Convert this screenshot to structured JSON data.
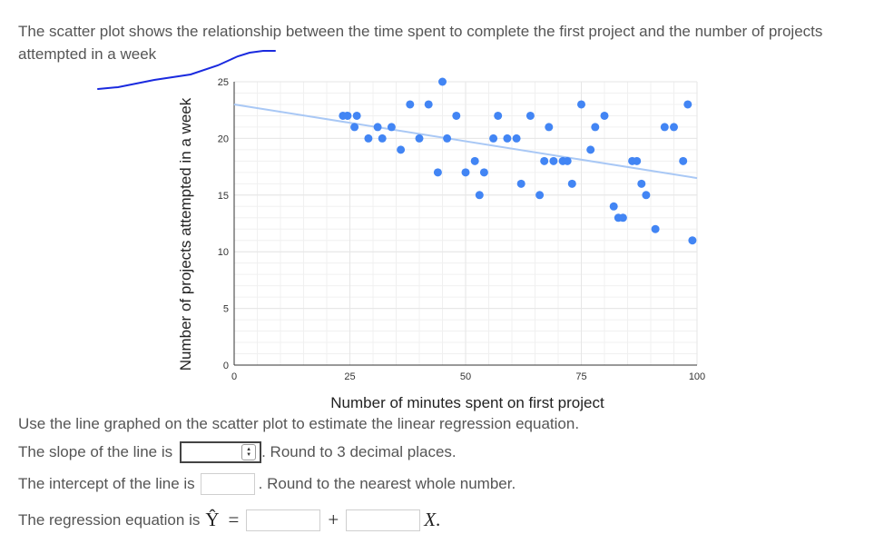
{
  "intro": "The scatter plot shows the relationship between the time spent to complete the first project and the number of projects attempted in a week",
  "question": "Use the line graphed on the scatter plot to estimate the linear regression equation.",
  "slope": {
    "label": "The slope of the line is",
    "note": ". Round to 3 decimal places.",
    "value": ""
  },
  "intercept": {
    "label": "The intercept of the line is",
    "note": ". Round to the nearest whole number.",
    "value": ""
  },
  "equation": {
    "label": "The regression equation is",
    "yhat": "Ŷ",
    "equals": "=",
    "plus": "+",
    "x": "X",
    "period": ".",
    "value_a": "",
    "value_b": ""
  },
  "colors": {
    "points": "#4285f4",
    "line": "#a9c8f5",
    "grid": "#e6e6e6",
    "ink": "#1a2adf"
  },
  "chart_data": {
    "type": "scatter",
    "title": "",
    "xlabel": "Number of minutes spent on first project",
    "ylabel": "Number of projects attempted in a week",
    "xlim": [
      0,
      100
    ],
    "ylim": [
      0,
      25
    ],
    "xticks": [
      0,
      25,
      50,
      75,
      100
    ],
    "yticks": [
      0,
      5,
      10,
      15,
      20,
      25
    ],
    "grid": true,
    "points": [
      {
        "x": 23.5,
        "y": 22
      },
      {
        "x": 24.5,
        "y": 22
      },
      {
        "x": 26.5,
        "y": 22
      },
      {
        "x": 26,
        "y": 21
      },
      {
        "x": 29,
        "y": 20
      },
      {
        "x": 31,
        "y": 21
      },
      {
        "x": 32,
        "y": 20
      },
      {
        "x": 34,
        "y": 21
      },
      {
        "x": 36,
        "y": 19
      },
      {
        "x": 38,
        "y": 23
      },
      {
        "x": 40,
        "y": 20
      },
      {
        "x": 42,
        "y": 23
      },
      {
        "x": 44,
        "y": 17
      },
      {
        "x": 45,
        "y": 25
      },
      {
        "x": 46,
        "y": 20
      },
      {
        "x": 48,
        "y": 22
      },
      {
        "x": 50,
        "y": 17
      },
      {
        "x": 52,
        "y": 18
      },
      {
        "x": 53,
        "y": 15
      },
      {
        "x": 54,
        "y": 17
      },
      {
        "x": 56,
        "y": 20
      },
      {
        "x": 57,
        "y": 22
      },
      {
        "x": 59,
        "y": 20
      },
      {
        "x": 61,
        "y": 20
      },
      {
        "x": 62,
        "y": 16
      },
      {
        "x": 64,
        "y": 22
      },
      {
        "x": 66,
        "y": 15
      },
      {
        "x": 68,
        "y": 21
      },
      {
        "x": 67,
        "y": 18
      },
      {
        "x": 69,
        "y": 18
      },
      {
        "x": 71,
        "y": 18
      },
      {
        "x": 72,
        "y": 18
      },
      {
        "x": 73,
        "y": 16
      },
      {
        "x": 75,
        "y": 23
      },
      {
        "x": 77,
        "y": 19
      },
      {
        "x": 78,
        "y": 21
      },
      {
        "x": 80,
        "y": 22
      },
      {
        "x": 82,
        "y": 14
      },
      {
        "x": 83,
        "y": 13
      },
      {
        "x": 84,
        "y": 13
      },
      {
        "x": 86,
        "y": 18
      },
      {
        "x": 87,
        "y": 18
      },
      {
        "x": 88,
        "y": 16
      },
      {
        "x": 89,
        "y": 15
      },
      {
        "x": 91,
        "y": 12
      },
      {
        "x": 93,
        "y": 21
      },
      {
        "x": 95,
        "y": 21
      },
      {
        "x": 97,
        "y": 18
      },
      {
        "x": 98,
        "y": 23
      },
      {
        "x": 99,
        "y": 11
      }
    ],
    "trendline": {
      "x": [
        0,
        100
      ],
      "y": [
        23,
        16.5
      ]
    }
  }
}
